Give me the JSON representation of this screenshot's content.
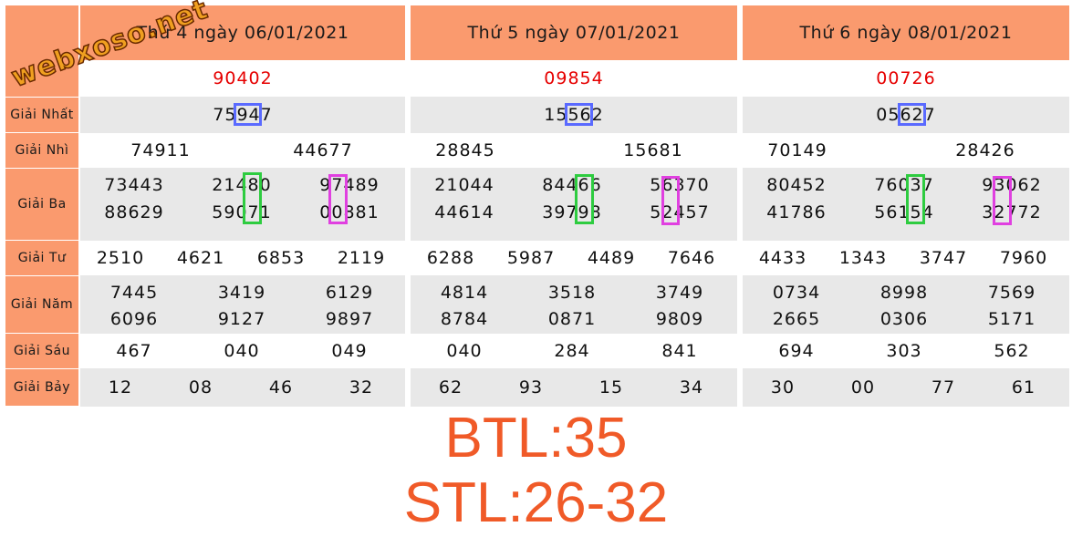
{
  "logo": "webxoso.net",
  "labels": [
    "Giải Nhất",
    "Giải Nhì",
    "Giải Ba",
    "Giải Tư",
    "Giải Năm",
    "Giải Sáu",
    "Giải Bảy"
  ],
  "panels": [
    {
      "title": "Thứ 4 ngày 06/01/2021",
      "db": "90402",
      "nhat": "75947",
      "nhi": [
        "74911",
        "44677"
      ],
      "ba": [
        "73443",
        "21480",
        "97489",
        "88629",
        "59071",
        "00881"
      ],
      "tu": [
        "2510",
        "4621",
        "6853",
        "2119"
      ],
      "nam": [
        "7445",
        "3419",
        "6129",
        "6096",
        "9127",
        "9897"
      ],
      "sau": [
        "467",
        "040",
        "049"
      ],
      "bay": [
        "12",
        "08",
        "46",
        "32"
      ]
    },
    {
      "title": "Thứ 5 ngày 07/01/2021",
      "db": "09854",
      "nhat": "15562",
      "nhi": [
        "28845",
        "15681"
      ],
      "ba": [
        "21044",
        "84466",
        "56370",
        "44614",
        "39798",
        "52457"
      ],
      "tu": [
        "6288",
        "5987",
        "4489",
        "7646"
      ],
      "nam": [
        "4814",
        "3518",
        "3749",
        "8784",
        "0871",
        "9809"
      ],
      "sau": [
        "040",
        "284",
        "841"
      ],
      "bay": [
        "62",
        "93",
        "15",
        "34"
      ]
    },
    {
      "title": "Thứ 6 ngày 08/01/2021",
      "db": "00726",
      "nhat": "05627",
      "nhi": [
        "70149",
        "28426"
      ],
      "ba": [
        "80452",
        "76037",
        "93062",
        "41786",
        "56154",
        "32772"
      ],
      "tu": [
        "4433",
        "1343",
        "3747",
        "7960"
      ],
      "nam": [
        "0734",
        "8998",
        "7569",
        "2665",
        "0306",
        "5171"
      ],
      "sau": [
        "694",
        "303",
        "562"
      ],
      "bay": [
        "30",
        "00",
        "77",
        "61"
      ]
    }
  ],
  "btl": "BTL:35",
  "stl": "STL:26-32"
}
